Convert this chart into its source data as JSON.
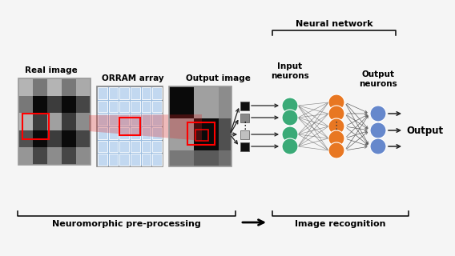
{
  "bg_color": "#f5f5f5",
  "real_image_label": "Real image",
  "orram_label": "ORRAM array",
  "output_image_label": "Output image",
  "neural_network_label": "Neural network",
  "input_neurons_label": "Input\nneurons",
  "output_neurons_label": "Output\nneurons",
  "output_label": "Output",
  "neuro_preprocessing_label": "Neuromorphic pre-processing",
  "image_recognition_label": "Image recognition",
  "input_color": "#3aaa77",
  "hidden_color": "#e87722",
  "output_color": "#6688cc",
  "arrow_color": "#222222",
  "real_pattern": [
    [
      180,
      120,
      180,
      120,
      170
    ],
    [
      120,
      10,
      60,
      10,
      70
    ],
    [
      180,
      60,
      160,
      60,
      140
    ],
    [
      80,
      10,
      60,
      10,
      70
    ],
    [
      150,
      70,
      140,
      70,
      140
    ]
  ],
  "out_pattern": [
    [
      10,
      10,
      160,
      160,
      140
    ],
    [
      10,
      10,
      160,
      160,
      140
    ],
    [
      160,
      160,
      10,
      10,
      80
    ],
    [
      160,
      160,
      10,
      10,
      80
    ],
    [
      120,
      120,
      90,
      90,
      110
    ]
  ],
  "sq_colors": [
    "#101010",
    "#888888",
    "#c0c0c0",
    "#101010"
  ]
}
